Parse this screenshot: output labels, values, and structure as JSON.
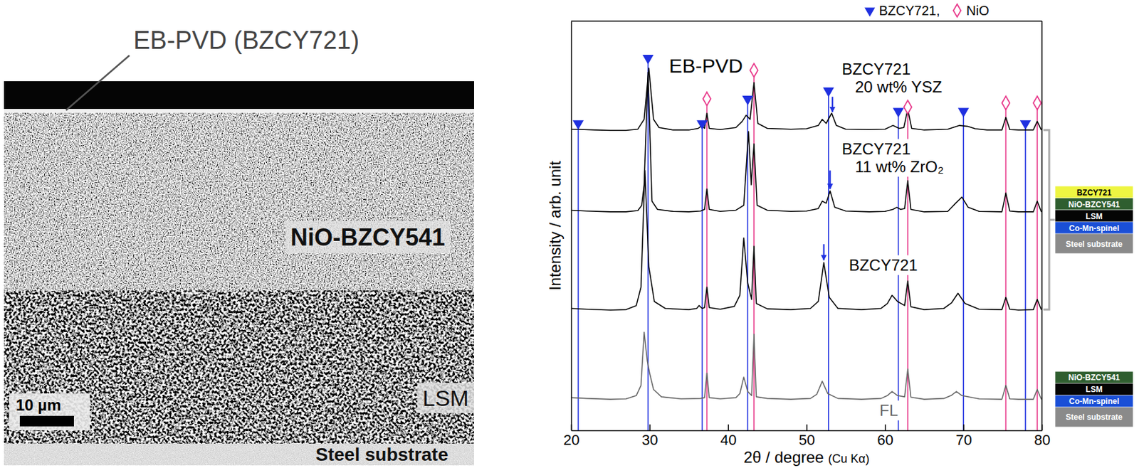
{
  "micrograph": {
    "title": "EB-PVD (BZCY721)",
    "layers": [
      "NiO-BZCY541",
      "LSM",
      "Steel substrate"
    ],
    "scale_bar": "10 µm"
  },
  "chart_data": {
    "type": "line",
    "title": "EB-PVD",
    "xlabel": "2θ / degree (Cu Kα)",
    "ylabel": "Intensity / arb. unit",
    "xlim": [
      20,
      80
    ],
    "xticks": [
      20,
      30,
      40,
      50,
      60,
      70,
      80
    ],
    "ylim": [
      0,
      100
    ],
    "tick_labels": "x",
    "legend": "top-right",
    "series": [
      {
        "name": "BZCY721 20 wt% YSZ",
        "color": "#000000",
        "x": [
          20,
          21.5,
          23,
          25,
          27,
          28.5,
          29.3,
          29.9,
          30.5,
          31.2,
          33,
          35,
          36.2,
          36.7,
          37.0,
          37.3,
          37.6,
          39,
          41,
          41.8,
          42.3,
          42.8,
          43.3,
          43.8,
          45,
          48,
          50,
          51.5,
          52.0,
          52.5,
          53.2,
          53.8,
          55,
          58,
          60,
          61.0,
          61.8,
          62.4,
          62.9,
          63.4,
          65,
          68,
          69.5,
          70.5,
          71.5,
          73,
          74.9,
          75.4,
          75.9,
          77,
          78.9,
          79.4,
          79.9,
          80
        ],
        "values": [
          73.6,
          73.5,
          73.4,
          73.3,
          73.3,
          73.6,
          76,
          88.5,
          76,
          74,
          73.4,
          73.4,
          73.8,
          74.5,
          73.8,
          77.5,
          73.8,
          73.5,
          74,
          75.5,
          77,
          76,
          85,
          75,
          73.8,
          73.6,
          73.7,
          74.5,
          76,
          75,
          77.5,
          74.5,
          73.6,
          73.5,
          73.6,
          74.5,
          73.8,
          74,
          78.5,
          73.8,
          73.4,
          73.6,
          74.5,
          74.3,
          73.7,
          73.4,
          73.4,
          76.5,
          73.5,
          73.4,
          73.4,
          75.5,
          73.5,
          73.4
        ]
      },
      {
        "name": "BZCY721 11 wt% ZrO₂",
        "color": "#000000",
        "x": [
          20,
          22,
          25,
          27,
          28.5,
          29.0,
          29.3,
          29.8,
          30.3,
          31,
          33,
          35,
          36.5,
          37.0,
          37.3,
          37.6,
          39,
          41,
          42.0,
          42.6,
          42.95,
          43.3,
          43.7,
          45,
          48,
          50,
          51.5,
          52.0,
          52.5,
          53.0,
          53.6,
          55,
          58,
          60,
          61.0,
          61.5,
          62.0,
          62.5,
          62.9,
          63.3,
          65,
          68,
          69.0,
          69.8,
          70.6,
          72,
          74.9,
          75.4,
          75.9,
          77,
          78.9,
          79.4,
          79.9,
          80
        ],
        "values": [
          53.8,
          53.6,
          53.4,
          53.4,
          53.7,
          55,
          60,
          87.5,
          56,
          54,
          53.5,
          53.4,
          53.6,
          54,
          59,
          54,
          53.5,
          53.8,
          55,
          73,
          60,
          70,
          55,
          53.8,
          53.5,
          53.6,
          54.2,
          56,
          55.5,
          58.5,
          54.5,
          53.6,
          53.4,
          53.5,
          54,
          54.5,
          54,
          54.2,
          61,
          54,
          53.4,
          53.5,
          55.5,
          57,
          54.5,
          53.5,
          53.4,
          58,
          53.6,
          53.4,
          53.4,
          56,
          53.5,
          53.4
        ]
      },
      {
        "name": "BZCY721",
        "color": "#000000",
        "x": [
          20,
          22,
          25,
          27,
          28.3,
          28.9,
          29.4,
          29.9,
          30.6,
          32,
          35,
          36.0,
          36.3,
          36.7,
          37.0,
          37.3,
          37.6,
          39,
          40.8,
          41.5,
          42.0,
          42.5,
          43.0,
          43.3,
          43.6,
          45,
          48,
          50.5,
          51.5,
          52.2,
          52.9,
          54,
          57,
          59.5,
          60.3,
          60.9,
          61.6,
          62.5,
          62.9,
          63.3,
          65,
          67.5,
          68.5,
          69.3,
          70.2,
          72,
          74.9,
          75.4,
          75.9,
          77,
          78.9,
          79.4,
          79.9,
          80
        ],
        "values": [
          29.8,
          29.6,
          29.4,
          29.5,
          30.5,
          35,
          63.5,
          40,
          31.5,
          29.8,
          29.5,
          29.8,
          30.5,
          29.8,
          30,
          35,
          30,
          29.6,
          30.3,
          33,
          47,
          36,
          32,
          45,
          31,
          29.7,
          29.5,
          29.8,
          31.5,
          41,
          32.5,
          29.8,
          29.5,
          29.8,
          31,
          33,
          31.5,
          30.5,
          36.5,
          30.2,
          29.5,
          29.8,
          31.2,
          33.5,
          31,
          29.6,
          29.5,
          32.5,
          29.6,
          29.4,
          29.5,
          32,
          29.6,
          29.5
        ]
      },
      {
        "name": "FL",
        "color": "#666666",
        "x": [
          20,
          22,
          25,
          27,
          28.3,
          28.9,
          29.3,
          29.7,
          30.0,
          30.5,
          31.5,
          34,
          36.5,
          37.0,
          37.3,
          37.6,
          39,
          41,
          41.5,
          42.0,
          42.5,
          43.0,
          43.3,
          43.6,
          45,
          48,
          50.5,
          51.3,
          52.0,
          52.7,
          54,
          57,
          59.5,
          60.3,
          60.9,
          61.6,
          62.5,
          62.9,
          63.3,
          65,
          67.5,
          68.5,
          69.1,
          69.8,
          72,
          74.9,
          75.4,
          75.9,
          77,
          78.9,
          79.4,
          79.9,
          80
        ],
        "values": [
          8,
          7.8,
          7.6,
          7.7,
          8.5,
          11,
          24,
          17,
          14,
          10,
          8.2,
          7.7,
          7.8,
          8,
          14,
          8,
          7.7,
          8,
          9,
          13,
          9.5,
          8.5,
          23.5,
          8.2,
          7.8,
          7.6,
          7.8,
          8.8,
          12,
          9,
          7.8,
          7.6,
          7.8,
          8.5,
          9.5,
          8.5,
          8.2,
          15,
          8.1,
          7.6,
          7.8,
          8.6,
          9.5,
          8.5,
          7.7,
          7.6,
          11,
          7.7,
          7.6,
          7.6,
          10,
          7.7,
          7.6
        ]
      }
    ],
    "reference_lines": [
      {
        "name": "BZCY721,",
        "color": "#1f30e0",
        "marker": "triangle-down",
        "x": [
          20.9,
          29.8,
          36.7,
          42.5,
          52.8,
          61.7,
          70.0,
          77.9
        ],
        "y": [
          75,
          91,
          75,
          81,
          83,
          78,
          78,
          75
        ]
      },
      {
        "name": "NiO",
        "color": "#e8388a",
        "marker": "diamond-open",
        "x": [
          37.3,
          43.3,
          62.9,
          75.4,
          79.4
        ],
        "y": [
          81,
          88,
          79,
          80,
          80
        ]
      }
    ],
    "arrows": [
      {
        "x": 53.3,
        "y_start": 81.5,
        "y_end": 77.8,
        "color": "#1f30e0"
      },
      {
        "x": 53.0,
        "y_start": 63.5,
        "y_end": 59,
        "color": "#1f30e0"
      },
      {
        "x": 52.2,
        "y_start": 45.5,
        "y_end": 41.6,
        "color": "#1f30e0"
      }
    ]
  },
  "layer_stacks": [
    [
      {
        "label": "BZCY721",
        "color": "#eef542"
      },
      {
        "label": "NiO-BZCY541",
        "color": "#2f5e2f"
      },
      {
        "label": "LSM",
        "color": "#050505"
      },
      {
        "label": "Co-Mn-spinel",
        "color": "#1a4fd6"
      },
      {
        "label": "Steel substrate",
        "color": "#8a8a8a"
      }
    ],
    [
      {
        "label": "NiO-BZCY541",
        "color": "#2f5e2f"
      },
      {
        "label": "LSM",
        "color": "#050505"
      },
      {
        "label": "Co-Mn-spinel",
        "color": "#1a4fd6"
      },
      {
        "label": "Steel substrate",
        "color": "#8a8a8a"
      }
    ]
  ]
}
